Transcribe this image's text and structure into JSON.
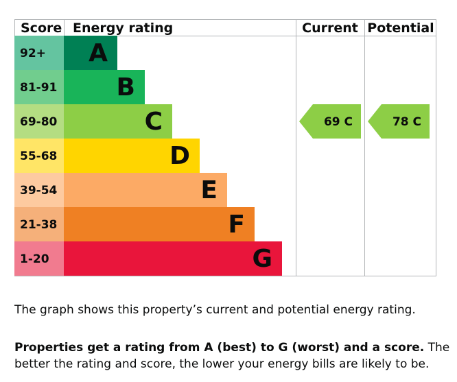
{
  "chart_data": {
    "type": "bar",
    "headers": {
      "score": "Score",
      "rating": "Energy rating",
      "current": "Current",
      "potential": "Potential"
    },
    "bands": [
      {
        "score": "92+",
        "letter": "A",
        "color": "#008054",
        "label_color": "#64c4a0"
      },
      {
        "score": "81-91",
        "letter": "B",
        "color": "#19b459",
        "label_color": "#71cd8e"
      },
      {
        "score": "69-80",
        "letter": "C",
        "color": "#8dce46",
        "label_color": "#b4dd82"
      },
      {
        "score": "55-68",
        "letter": "D",
        "color": "#ffd500",
        "label_color": "#ffe566"
      },
      {
        "score": "39-54",
        "letter": "E",
        "color": "#fcaa65",
        "label_color": "#fdcaa0"
      },
      {
        "score": "21-38",
        "letter": "F",
        "color": "#ef8023",
        "label_color": "#f5b07a"
      },
      {
        "score": "1-20",
        "letter": "G",
        "color": "#e9153b",
        "label_color": "#f17b8f"
      }
    ],
    "current": {
      "value": 69,
      "letter": "C",
      "label": "69  C",
      "color": "#8dce46"
    },
    "potential": {
      "value": 78,
      "letter": "C",
      "label": "78  C",
      "color": "#8dce46"
    }
  },
  "description": {
    "line1": "The graph shows this property’s current and potential energy rating.",
    "bold": "Properties get a rating from A (best) to G (worst) and a score.",
    "rest": " The better the rating and score, the lower your energy bills are likely to be."
  }
}
